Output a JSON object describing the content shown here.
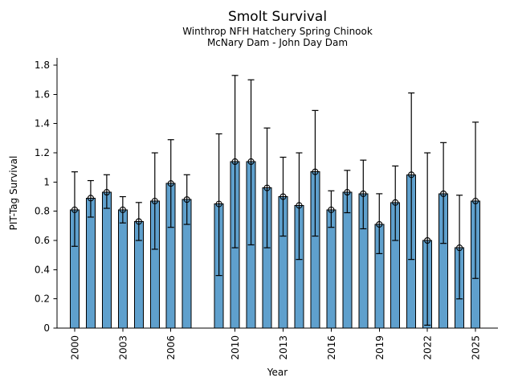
{
  "figure": {
    "title": "Smolt Survival",
    "subtitle_line1": "Winthrop NFH Hatchery Spring Chinook",
    "subtitle_line2": "McNary Dam - John Day Dam"
  },
  "chart_data": {
    "type": "bar",
    "title": "Smolt Survival",
    "subtitle": [
      "Winthrop NFH Hatchery Spring Chinook",
      "McNary Dam - John Day Dam"
    ],
    "xlabel": "Year",
    "ylabel": "PIT-Tag Survival",
    "categories": [
      2000,
      2001,
      2002,
      2003,
      2004,
      2005,
      2006,
      2007,
      2009,
      2010,
      2011,
      2012,
      2013,
      2014,
      2015,
      2016,
      2017,
      2018,
      2019,
      2020,
      2021,
      2022,
      2023,
      2024,
      2025
    ],
    "values": [
      0.81,
      0.89,
      0.93,
      0.81,
      0.73,
      0.87,
      0.99,
      0.88,
      0.85,
      1.14,
      1.14,
      0.96,
      0.9,
      0.84,
      1.07,
      0.81,
      0.93,
      0.92,
      0.71,
      0.86,
      1.05,
      0.6,
      0.92,
      0.55,
      0.87
    ],
    "error_low": [
      0.56,
      0.76,
      0.82,
      0.72,
      0.6,
      0.54,
      0.69,
      0.71,
      0.36,
      0.55,
      0.57,
      0.55,
      0.63,
      0.47,
      0.63,
      0.69,
      0.79,
      0.68,
      0.51,
      0.6,
      0.47,
      0.02,
      0.58,
      0.2,
      0.34
    ],
    "error_high": [
      1.07,
      1.01,
      1.05,
      0.9,
      0.86,
      1.2,
      1.29,
      1.05,
      1.33,
      1.73,
      1.7,
      1.37,
      1.17,
      1.2,
      1.49,
      0.94,
      1.08,
      1.15,
      0.92,
      1.11,
      1.61,
      1.2,
      1.27,
      0.91,
      1.41
    ],
    "missing_years": [
      2008
    ],
    "marker": "open-circle",
    "bar_color": "#5fa0cd",
    "edge_color": "#000000",
    "ylim": [
      0,
      1.85
    ],
    "yticks": [
      0,
      0.2,
      0.4,
      0.6,
      0.8,
      1,
      1.2,
      1.4,
      1.6,
      1.8
    ],
    "xticks": [
      2000,
      2003,
      2006,
      2010,
      2013,
      2016,
      2019,
      2022,
      2025
    ],
    "xlim": [
      1998.9,
      2026.4
    ],
    "grid": false,
    "legend": null,
    "spines": [
      "left",
      "bottom"
    ]
  }
}
